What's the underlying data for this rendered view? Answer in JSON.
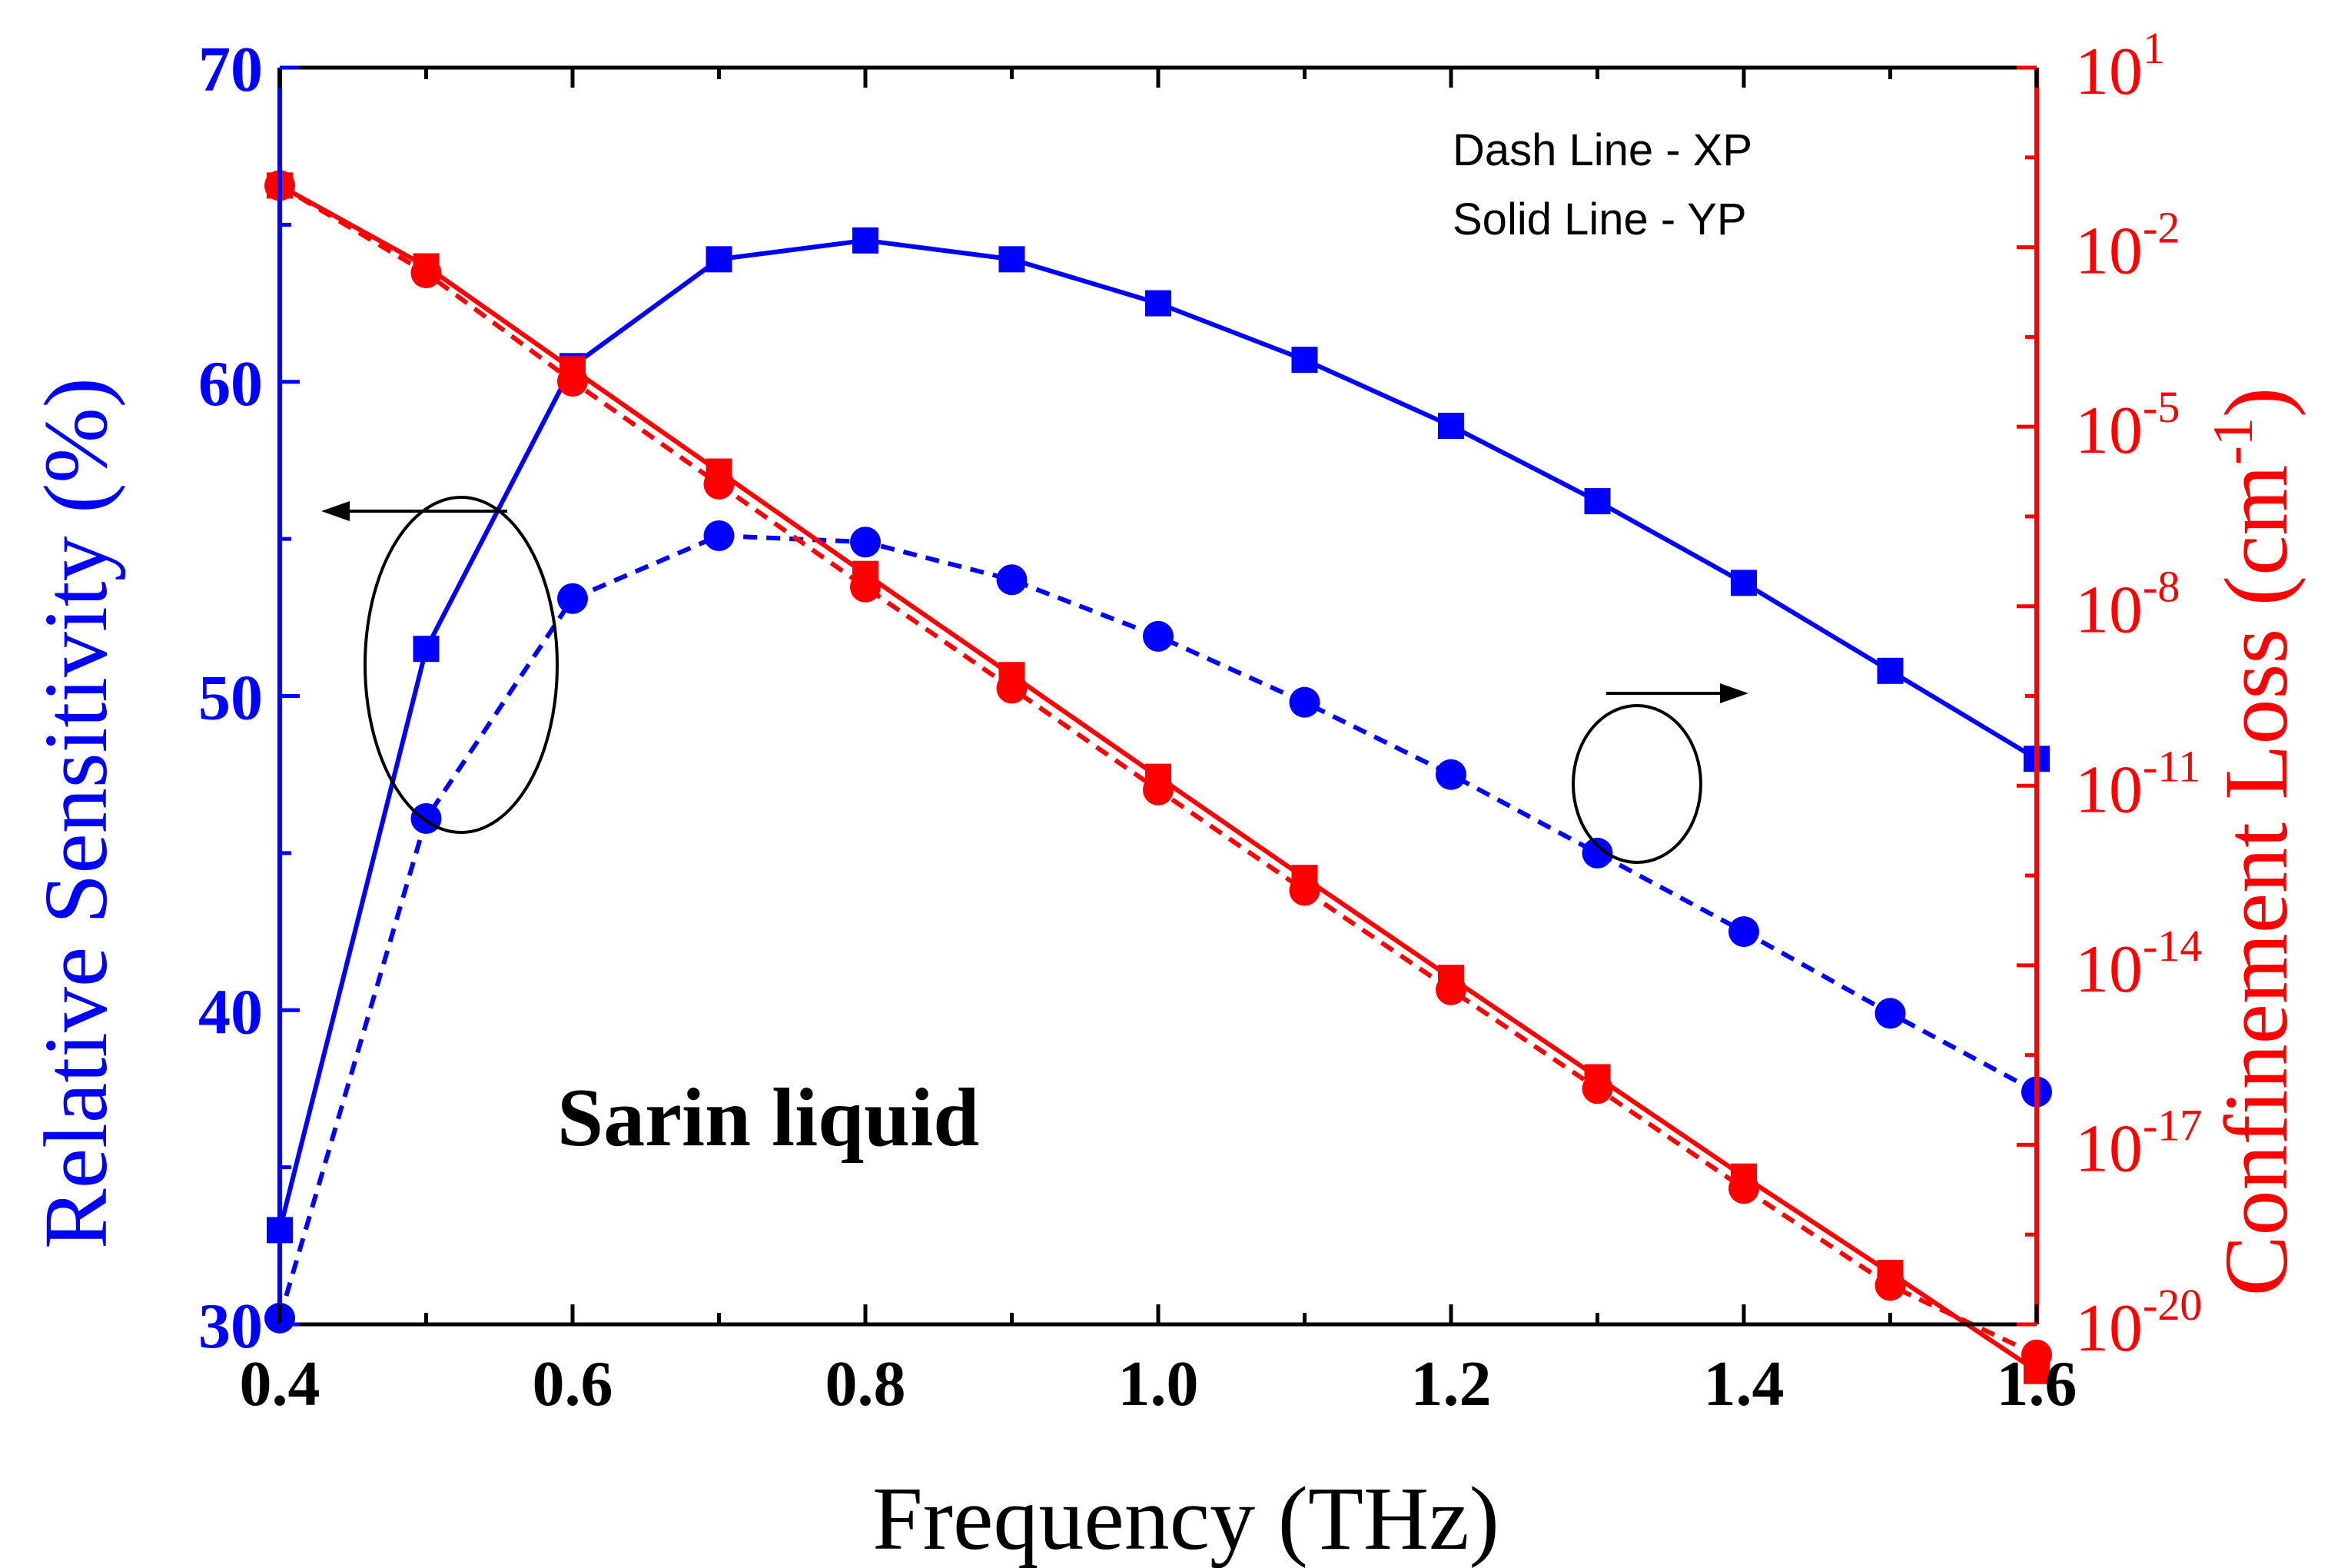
{
  "chart_data": {
    "type": "line",
    "title": "",
    "annotation": "Sarin liquid",
    "legend": [
      "Dash Line - XP",
      "Solid Line - YP"
    ],
    "legend_position": "top-right",
    "xlabel": "Frequency (THz)",
    "ylabel_left": "Relative Sensitivity (%)",
    "ylabel_right_text": "Confinement Loss (cm",
    "ylabel_right_exp": "-1",
    "ylabel_right_close": ")",
    "xlim": [
      0.4,
      1.6
    ],
    "ylim_left": [
      30,
      70
    ],
    "ylim_right_log10": [
      -20,
      1
    ],
    "x_ticks": [
      "0.4",
      "0.6",
      "0.8",
      "1.0",
      "1.2",
      "1.4",
      "1.6"
    ],
    "y_left_ticks": [
      "30",
      "40",
      "50",
      "60",
      "70"
    ],
    "y_right_ticks": [
      {
        "base": "10",
        "exp": "-20"
      },
      {
        "base": "10",
        "exp": "-17"
      },
      {
        "base": "10",
        "exp": "-14"
      },
      {
        "base": "10",
        "exp": "-11"
      },
      {
        "base": "10",
        "exp": "-8"
      },
      {
        "base": "10",
        "exp": "-5"
      },
      {
        "base": "10",
        "exp": "-2"
      },
      {
        "base": "10",
        "exp": "1"
      }
    ],
    "x": [
      0.4,
      0.5,
      0.6,
      0.7,
      0.8,
      0.9,
      1.0,
      1.1,
      1.2,
      1.3,
      1.4,
      1.5,
      1.6
    ],
    "series": [
      {
        "name": "Relative Sensitivity YP",
        "axis": "left",
        "style": "solid",
        "marker": "square",
        "color": "#0000ff",
        "values": [
          33.0,
          51.5,
          60.5,
          63.9,
          64.5,
          63.9,
          62.5,
          60.7,
          58.6,
          56.2,
          53.6,
          50.8,
          48.0
        ]
      },
      {
        "name": "Relative Sensitivity XP",
        "axis": "left",
        "style": "dash",
        "marker": "circle",
        "color": "#0000ff",
        "values": [
          30.2,
          46.1,
          53.1,
          55.1,
          54.9,
          53.7,
          51.9,
          49.8,
          47.5,
          45.0,
          42.5,
          39.9,
          37.4
        ]
      },
      {
        "name": "Confinement Loss YP",
        "axis": "right",
        "style": "solid",
        "marker": "square",
        "color": "#ff0000",
        "values_log10": [
          -0.97,
          -2.32,
          -4.04,
          -5.75,
          -7.46,
          -9.15,
          -10.85,
          -12.54,
          -14.21,
          -15.87,
          -17.53,
          -19.14,
          -20.78
        ]
      },
      {
        "name": "Confinement Loss XP",
        "axis": "right",
        "style": "dash",
        "marker": "circle",
        "color": "#ff0000",
        "values_log10": [
          -0.97,
          -2.43,
          -4.24,
          -5.96,
          -7.68,
          -9.37,
          -11.07,
          -12.75,
          -14.41,
          -16.06,
          -17.73,
          -19.35,
          -20.51
        ]
      }
    ],
    "colors": {
      "left_axis": "#0000ff",
      "right_axis": "#ff0000",
      "frame": "#000000"
    }
  }
}
